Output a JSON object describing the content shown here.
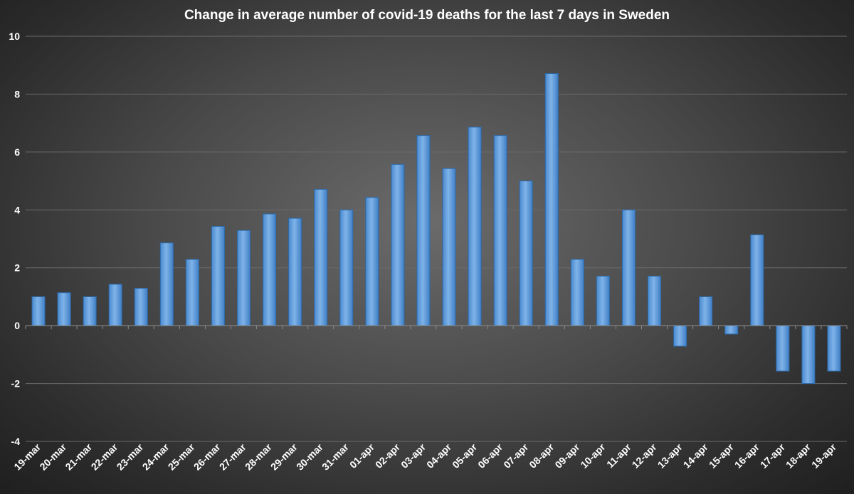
{
  "chart_data": {
    "type": "bar",
    "title": "Change in average number of covid-19 deaths for the last 7 days in Sweden",
    "xlabel": "",
    "ylabel": "",
    "ylim": [
      -4,
      10
    ],
    "yticks": [
      10,
      8,
      6,
      4,
      2,
      0,
      -2,
      -4
    ],
    "grid": true,
    "categories": [
      "19-mar",
      "20-mar",
      "21-mar",
      "22-mar",
      "23-mar",
      "24-mar",
      "25-mar",
      "26-mar",
      "27-mar",
      "28-mar",
      "29-mar",
      "30-mar",
      "31-mar",
      "01-apr",
      "02-apr",
      "03-apr",
      "04-apr",
      "05-apr",
      "06-apr",
      "07-apr",
      "08-apr",
      "09-apr",
      "10-apr",
      "11-apr",
      "12-apr",
      "13-apr",
      "14-apr",
      "15-apr",
      "16-apr",
      "17-apr",
      "18-apr",
      "19-apr"
    ],
    "values": [
      1.0,
      1.14,
      1.0,
      1.43,
      1.29,
      2.86,
      2.29,
      3.43,
      3.29,
      3.86,
      3.71,
      4.71,
      4.0,
      4.43,
      5.57,
      6.57,
      5.43,
      6.86,
      6.57,
      5.0,
      8.71,
      2.29,
      1.71,
      4.0,
      1.71,
      -0.71,
      1.0,
      -0.29,
      3.14,
      -1.57,
      -2.0,
      -1.57
    ],
    "bar_color": "#5b9bd5"
  }
}
